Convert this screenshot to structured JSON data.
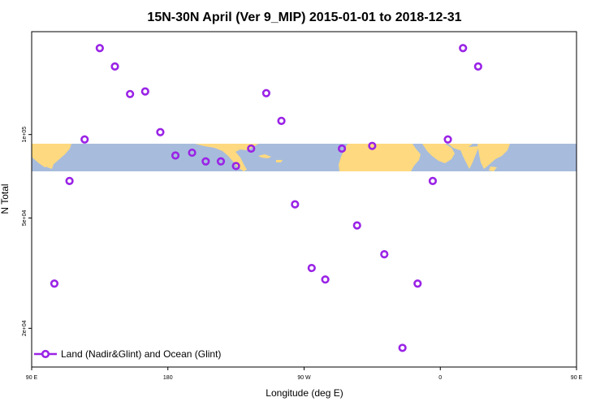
{
  "chart_data": {
    "type": "scatter",
    "title": "15N-30N April (Ver 9_MIP)   2015-01-01 to 2018-12-31",
    "xlabel": "Longitude (deg E)",
    "ylabel": "N Total",
    "x_axis": {
      "range": [
        90,
        450
      ],
      "ticks": [
        {
          "value": 90,
          "label": "90 E"
        },
        {
          "value": 180,
          "label": "180"
        },
        {
          "value": 270,
          "label": "90 W"
        },
        {
          "value": 360,
          "label": "0"
        },
        {
          "value": 450,
          "label": "90 E"
        },
        {
          "value": 540,
          "label": "180"
        }
      ]
    },
    "y_axis": {
      "scale": "log",
      "range": [
        14500,
        235000
      ],
      "ticks": [
        {
          "value": 20000,
          "label": "2e+04"
        },
        {
          "value": 50000,
          "label": "5e+04"
        },
        {
          "value": 100000,
          "label": "1e+05"
        }
      ]
    },
    "map_band": {
      "lat_range": "15N-30N",
      "ocean_color": "#a7bcdc",
      "land_color": "#ffd97f"
    },
    "grid": false,
    "legend": {
      "position": "bottom-left"
    },
    "series": [
      {
        "name": "Land (Nadir&Glint) and Ocean (Glint)",
        "color": "#9a23e6",
        "marker": "open-circle",
        "points": [
          {
            "x": 105,
            "y": 29000
          },
          {
            "x": 115,
            "y": 68000
          },
          {
            "x": 125,
            "y": 96000
          },
          {
            "x": 135,
            "y": 205000
          },
          {
            "x": 145,
            "y": 176000
          },
          {
            "x": 155,
            "y": 140000
          },
          {
            "x": 165,
            "y": 143000
          },
          {
            "x": 175,
            "y": 102000
          },
          {
            "x": 185,
            "y": 84000
          },
          {
            "x": 196,
            "y": 86000
          },
          {
            "x": 205,
            "y": 80000
          },
          {
            "x": 215,
            "y": 80000
          },
          {
            "x": 225,
            "y": 77000
          },
          {
            "x": 235,
            "y": 89000
          },
          {
            "x": 245,
            "y": 141000
          },
          {
            "x": 255,
            "y": 112000
          },
          {
            "x": 264,
            "y": 56000
          },
          {
            "x": 275,
            "y": 33000
          },
          {
            "x": 284,
            "y": 30000
          },
          {
            "x": 295,
            "y": 89000
          },
          {
            "x": 305,
            "y": 47000
          },
          {
            "x": 315,
            "y": 91000
          },
          {
            "x": 323,
            "y": 37000
          },
          {
            "x": 335,
            "y": 17000
          },
          {
            "x": 345,
            "y": 29000
          },
          {
            "x": 355,
            "y": 68000
          },
          {
            "x": 365,
            "y": 96000
          },
          {
            "x": 375,
            "y": 205000
          },
          {
            "x": 385,
            "y": 176000
          }
        ]
      }
    ]
  }
}
